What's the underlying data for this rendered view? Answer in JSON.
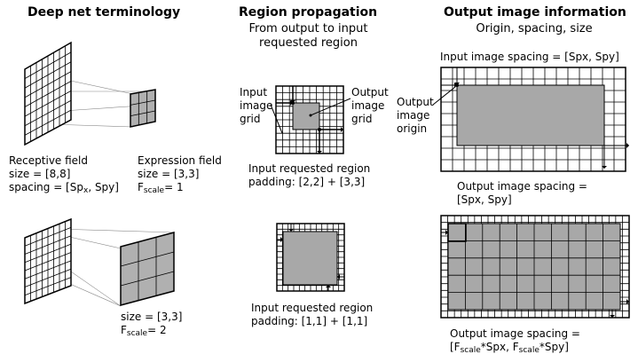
{
  "sections": {
    "deep_net": {
      "title": "Deep net terminology",
      "receptive_field": {
        "line1": "Receptive field",
        "line2": "size = [8,8]",
        "line3_prefix": "spacing = [Sp",
        "line3_sub": "x",
        "line3_suffix": ", Spy]"
      },
      "expression_field": {
        "line1": "Expression field",
        "line2": "size = [3,3]",
        "fscale_prefix": "F",
        "fscale_sub": "scale",
        "fscale_value": "= 1"
      },
      "second": {
        "line1": "size = [3,3]",
        "fscale_prefix": "F",
        "fscale_sub": "scale",
        "fscale_value": "= 2"
      }
    },
    "region_propagation": {
      "title": "Region propagation",
      "subtitle_line1": "From output to input",
      "subtitle_line2": "requested region",
      "input_grid_label": [
        "Input",
        "image",
        "grid"
      ],
      "output_grid_label": [
        "Output",
        "image",
        "grid"
      ],
      "first_caption_line1": "Input requested region",
      "first_caption_line2": "padding: [2,2] + [3,3]",
      "second_caption_line1": "Input requested region",
      "second_caption_line2": "padding: [1,1] + [1,1]"
    },
    "output_info": {
      "title": "Output image information",
      "subtitle": "Origin, spacing, size",
      "input_spacing": "Input image spacing = [Spx, Spy]",
      "origin_label": [
        "Output",
        "image",
        "origin"
      ],
      "output_spacing_line1": "Output image spacing =",
      "output_spacing_line2": "[Spx, Spy]",
      "output_spacing2_line1": "Output image spacing =",
      "output_spacing2_parts": [
        "[F",
        "scale",
        "*Spx, F",
        "scale",
        "*Spy]"
      ]
    }
  }
}
